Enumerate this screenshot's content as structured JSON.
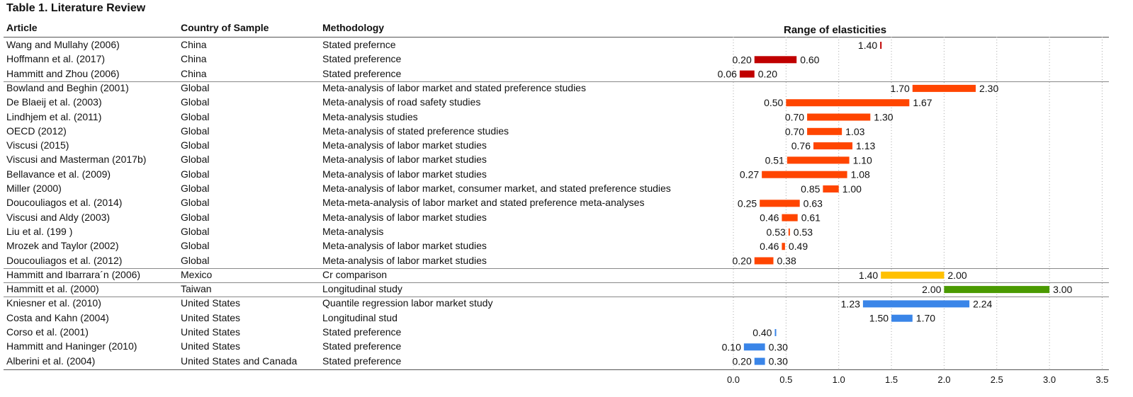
{
  "table": {
    "title": "Table 1. Literature Review",
    "headers": {
      "article": "Article",
      "country": "Country of Sample",
      "methodology": "Methodology",
      "range": "Range of elasticities"
    }
  },
  "colors": {
    "China": "#c00000",
    "Global": "#ff4500",
    "Mexico": "#ffc000",
    "Taiwan": "#4a9a00",
    "United States": "#3a85e8"
  },
  "chart_data": {
    "type": "bar",
    "title": "Range of elasticities",
    "xlim": [
      0,
      3.5
    ],
    "xticks": [
      "0.0",
      "0.5",
      "1.0",
      "1.5",
      "2.0",
      "2.5",
      "3.0",
      "3.5"
    ],
    "grid": "vertical dotted",
    "rows": [
      {
        "article": "Wang and Mullahy (2006)",
        "country": "China",
        "methodology": "Stated prefernce",
        "low": 1.4,
        "high": 1.4,
        "low_label": "1.40",
        "high_label": "",
        "group": "China"
      },
      {
        "article": "Hoffmann et al. (2017)",
        "country": "China",
        "methodology": "Stated preference",
        "low": 0.2,
        "high": 0.6,
        "low_label": "0.20",
        "high_label": "0.60",
        "group": "China"
      },
      {
        "article": "Hammitt and Zhou (2006)",
        "country": "China",
        "methodology": "Stated preference",
        "low": 0.06,
        "high": 0.2,
        "low_label": "0.06",
        "high_label": "0.20",
        "group": "China"
      },
      {
        "article": "Bowland and Beghin (2001)",
        "country": "Global",
        "methodology": "Meta-analysis of labor market and stated preference studies",
        "low": 1.7,
        "high": 2.3,
        "low_label": "1.70",
        "high_label": "2.30",
        "group": "Global"
      },
      {
        "article": "De Blaeij et al. (2003)",
        "country": "Global",
        "methodology": "Meta-analysis of road safety studies",
        "low": 0.5,
        "high": 1.67,
        "low_label": "0.50",
        "high_label": "1.67",
        "group": "Global"
      },
      {
        "article": "Lindhjem et al. (2011)",
        "country": "Global",
        "methodology": "Meta-analysis studies",
        "low": 0.7,
        "high": 1.3,
        "low_label": "0.70",
        "high_label": "1.30",
        "group": "Global"
      },
      {
        "article": "OECD (2012)",
        "country": "Global",
        "methodology": "Meta-analysis of stated preference studies",
        "low": 0.7,
        "high": 1.03,
        "low_label": "0.70",
        "high_label": "1.03",
        "group": "Global"
      },
      {
        "article": "Viscusi (2015)",
        "country": "Global",
        "methodology": "Meta-analysis of labor market studies",
        "low": 0.76,
        "high": 1.13,
        "low_label": "0.76",
        "high_label": "1.13",
        "group": "Global"
      },
      {
        "article": "Viscusi and Masterman (2017b)",
        "country": "Global",
        "methodology": "Meta-analysis of labor market studies",
        "low": 0.51,
        "high": 1.1,
        "low_label": "0.51",
        "high_label": "1.10",
        "group": "Global"
      },
      {
        "article": "Bellavance et al. (2009)",
        "country": "Global",
        "methodology": "Meta-analysis of labor market studies",
        "low": 0.27,
        "high": 1.08,
        "low_label": "0.27",
        "high_label": "1.08",
        "group": "Global"
      },
      {
        "article": "Miller (2000)",
        "country": "Global",
        "methodology": "Meta-analysis of labor market, consumer market, and stated preference studies",
        "low": 0.85,
        "high": 1.0,
        "low_label": "0.85",
        "high_label": "1.00",
        "group": "Global"
      },
      {
        "article": "Doucouliagos et al. (2014)",
        "country": "Global",
        "methodology": "Meta-meta-analysis of labor market and stated preference meta-analyses",
        "low": 0.25,
        "high": 0.63,
        "low_label": "0.25",
        "high_label": "0.63",
        "group": "Global"
      },
      {
        "article": "Viscusi and Aldy (2003)",
        "country": "Global",
        "methodology": "Meta-analysis of labor market studies",
        "low": 0.46,
        "high": 0.61,
        "low_label": "0.46",
        "high_label": "0.61",
        "group": "Global"
      },
      {
        "article": "Liu et al. (199 )",
        "country": "Global",
        "methodology": "Meta-analysis",
        "low": 0.53,
        "high": 0.53,
        "low_label": "0.53",
        "high_label": "0.53",
        "group": "Global"
      },
      {
        "article": "Mrozek and Taylor (2002)",
        "country": "Global",
        "methodology": "Meta-analysis of labor market studies",
        "low": 0.46,
        "high": 0.49,
        "low_label": "0.46",
        "high_label": "0.49",
        "group": "Global"
      },
      {
        "article": "Doucouliagos et al. (2012)",
        "country": "Global",
        "methodology": "Meta-analysis of labor market studies",
        "low": 0.2,
        "high": 0.38,
        "low_label": "0.20",
        "high_label": "0.38",
        "group": "Global"
      },
      {
        "article": "Hammitt and Ibarrara´n (2006)",
        "country": "Mexico",
        "methodology": "Cr comparison",
        "low": 1.4,
        "high": 2.0,
        "low_label": "1.40",
        "high_label": "2.00",
        "group": "Mexico"
      },
      {
        "article": "Hammitt et al. (2000)",
        "country": "Taiwan",
        "methodology": "Longitudinal study",
        "low": 2.0,
        "high": 3.0,
        "low_label": "2.00",
        "high_label": "3.00",
        "group": "Taiwan"
      },
      {
        "article": "Kniesner et al. (2010)",
        "country": "United States",
        "methodology": "Quantile regression labor market study",
        "low": 1.23,
        "high": 2.24,
        "low_label": "1.23",
        "high_label": "2.24",
        "group": "United States"
      },
      {
        "article": "Costa and Kahn (2004)",
        "country": "United States",
        "methodology": "Longitudinal stud",
        "low": 1.5,
        "high": 1.7,
        "low_label": "1.50",
        "high_label": "1.70",
        "group": "United States"
      },
      {
        "article": "Corso et al. (2001)",
        "country": "United States",
        "methodology": "Stated preference",
        "low": 0.4,
        "high": 0.4,
        "low_label": "0.40",
        "high_label": "",
        "group": "United States"
      },
      {
        "article": "Hammitt and Haninger (2010)",
        "country": "United States",
        "methodology": "Stated preference",
        "low": 0.1,
        "high": 0.3,
        "low_label": "0.10",
        "high_label": "0.30",
        "group": "United States"
      },
      {
        "article": "Alberini et al. (2004)",
        "country": "United States and Canada",
        "methodology": "Stated preference",
        "low": 0.2,
        "high": 0.3,
        "low_label": "0.20",
        "high_label": "0.30",
        "group": "United States"
      }
    ]
  }
}
